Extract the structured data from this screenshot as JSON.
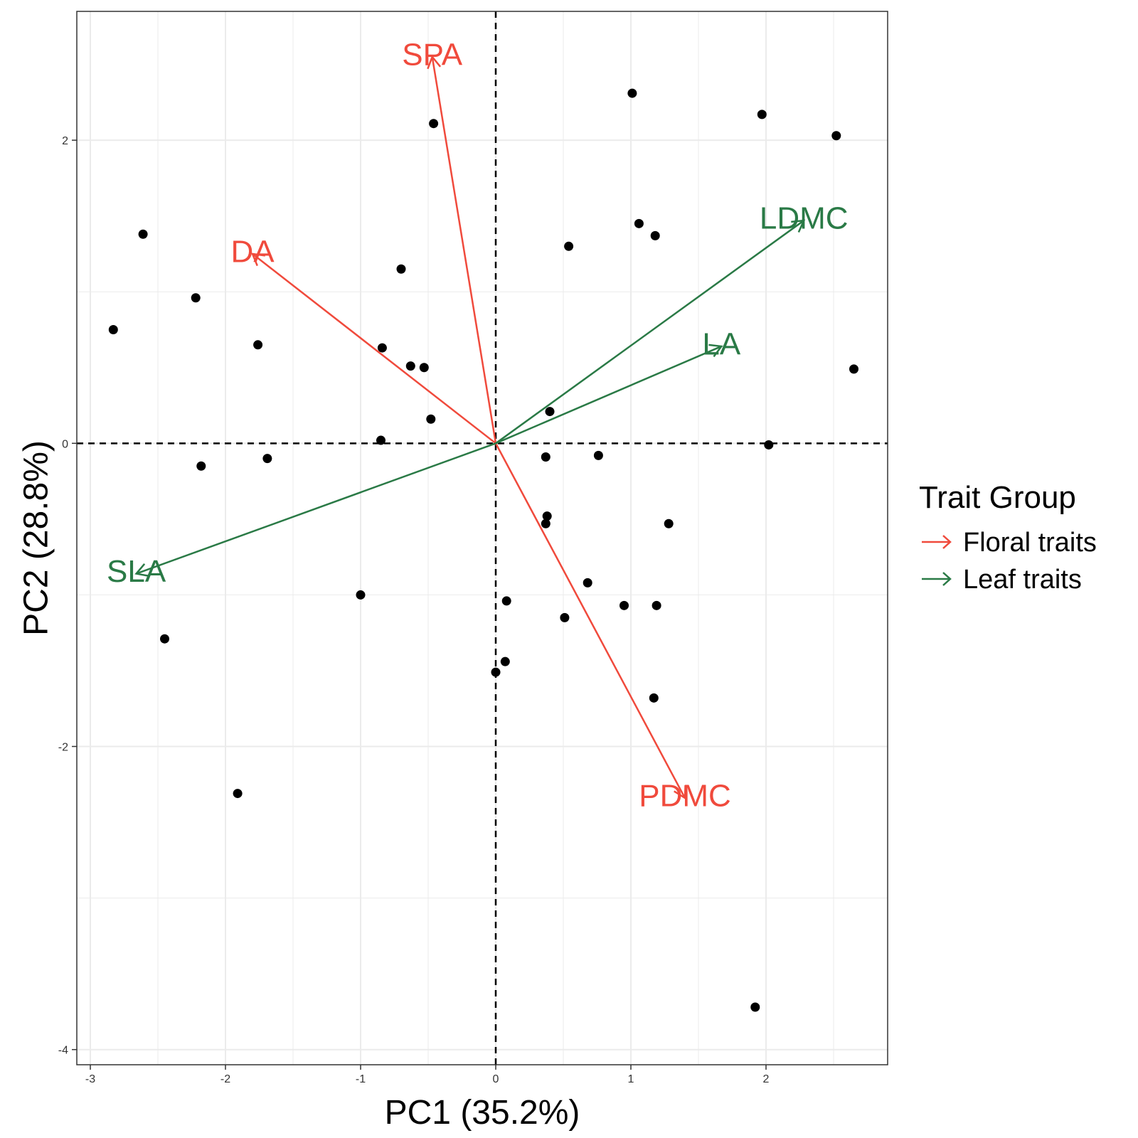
{
  "chart_data": {
    "type": "scatter",
    "subtype": "pca-biplot",
    "title": "",
    "xlabel": "PC1 (35.2%)",
    "ylabel": "PC2 (28.8%)",
    "xlim": [
      -3.1,
      2.9
    ],
    "ylim": [
      -4.1,
      2.85
    ],
    "x_ticks": [
      -3,
      -2,
      -1,
      0,
      1,
      2
    ],
    "y_ticks": [
      -4,
      -2,
      0,
      2
    ],
    "grid": true,
    "reference_lines": {
      "x": 0,
      "y": 0,
      "style": "dashed"
    },
    "points": [
      {
        "x": 1.01,
        "y": 2.31
      },
      {
        "x": -0.46,
        "y": 2.11
      },
      {
        "x": 1.97,
        "y": 2.17
      },
      {
        "x": 2.52,
        "y": 2.03
      },
      {
        "x": 1.06,
        "y": 1.45
      },
      {
        "x": 1.18,
        "y": 1.37
      },
      {
        "x": 0.54,
        "y": 1.3
      },
      {
        "x": -2.61,
        "y": 1.38
      },
      {
        "x": -0.7,
        "y": 1.15
      },
      {
        "x": -2.22,
        "y": 0.96
      },
      {
        "x": -2.83,
        "y": 0.75
      },
      {
        "x": -1.76,
        "y": 0.65
      },
      {
        "x": -0.84,
        "y": 0.63
      },
      {
        "x": -0.63,
        "y": 0.51
      },
      {
        "x": -0.53,
        "y": 0.5
      },
      {
        "x": 2.65,
        "y": 0.49
      },
      {
        "x": -0.48,
        "y": 0.16
      },
      {
        "x": 0.4,
        "y": 0.21
      },
      {
        "x": -0.85,
        "y": 0.02
      },
      {
        "x": 2.02,
        "y": -0.01
      },
      {
        "x": -2.18,
        "y": -0.15
      },
      {
        "x": -1.69,
        "y": -0.1
      },
      {
        "x": 0.37,
        "y": -0.09
      },
      {
        "x": 0.76,
        "y": -0.08
      },
      {
        "x": 0.38,
        "y": -0.48
      },
      {
        "x": 0.37,
        "y": -0.53
      },
      {
        "x": 1.28,
        "y": -0.53
      },
      {
        "x": 0.68,
        "y": -0.92
      },
      {
        "x": -1.0,
        "y": -1.0
      },
      {
        "x": 0.08,
        "y": -1.04
      },
      {
        "x": 0.95,
        "y": -1.07
      },
      {
        "x": 1.19,
        "y": -1.07
      },
      {
        "x": 0.51,
        "y": -1.15
      },
      {
        "x": -2.45,
        "y": -1.29
      },
      {
        "x": 0.07,
        "y": -1.44
      },
      {
        "x": 0.0,
        "y": -1.51
      },
      {
        "x": 1.17,
        "y": -1.68
      },
      {
        "x": -1.91,
        "y": -2.31
      },
      {
        "x": 1.92,
        "y": -3.72
      }
    ],
    "vectors": [
      {
        "label": "SPA",
        "group": "Floral traits",
        "x": -0.47,
        "y": 2.55
      },
      {
        "label": "DA",
        "group": "Floral traits",
        "x": -1.8,
        "y": 1.25
      },
      {
        "label": "PDMC",
        "group": "Floral traits",
        "x": 1.4,
        "y": -2.34
      },
      {
        "label": "LDMC",
        "group": "Leaf traits",
        "x": 2.28,
        "y": 1.47
      },
      {
        "label": "LA",
        "group": "Leaf traits",
        "x": 1.67,
        "y": 0.64
      },
      {
        "label": "SLA",
        "group": "Leaf traits",
        "x": -2.66,
        "y": -0.86
      }
    ],
    "legend": {
      "title": "Trait Group",
      "position": "right",
      "items": [
        {
          "name": "Floral traits",
          "color": "#f04a3c"
        },
        {
          "name": "Leaf traits",
          "color": "#2a7a46"
        }
      ]
    }
  }
}
